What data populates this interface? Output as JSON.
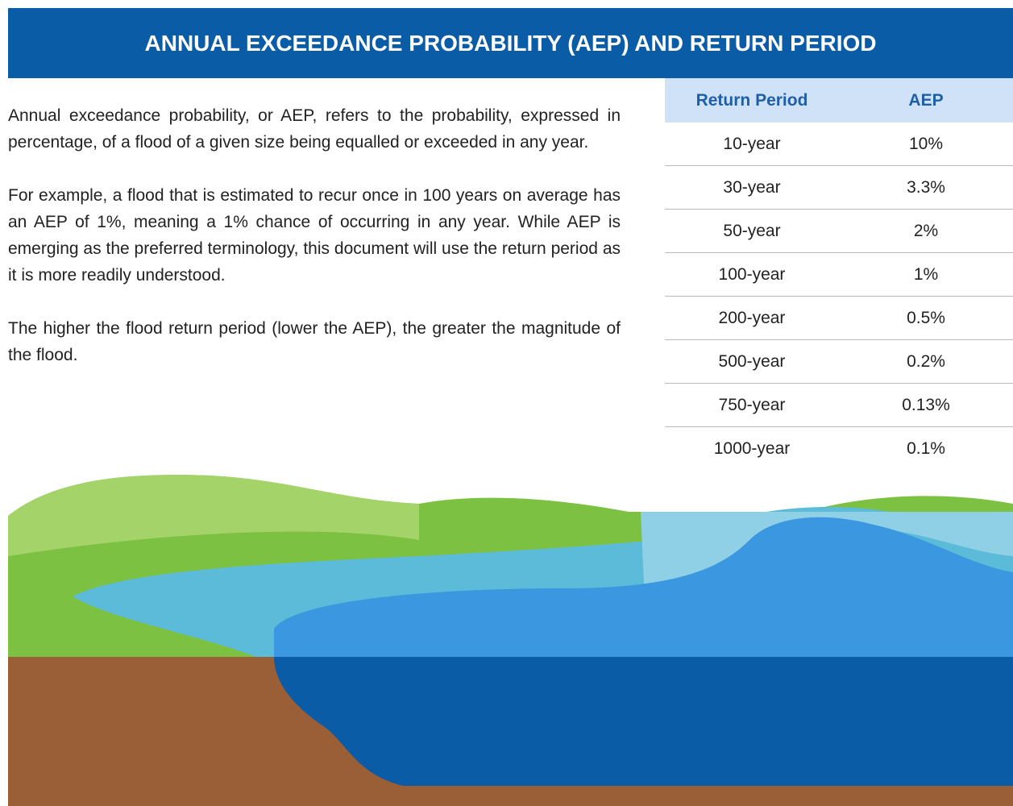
{
  "header": {
    "title": "ANNUAL EXCEEDANCE PROBABILITY (AEP) AND RETURN PERIOD"
  },
  "paragraphs": [
    "Annual exceedance probability, or AEP, refers to the probability, expressed in percentage, of a flood of a given size being equalled or exceeded in any year.",
    "For example, a flood that is estimated to recur once in 100 years on average has an AEP of 1%, meaning a 1% chance of occurring in any year. While AEP is emerging as the preferred terminology, this document will use the return period as it is more readily understood.",
    "The higher the flood return period (lower the AEP), the greater the magnitude of the flood."
  ],
  "table": {
    "headers": [
      "Return Period",
      "AEP"
    ],
    "rows": [
      [
        "10-year",
        "10%"
      ],
      [
        "30-year",
        "3.3%"
      ],
      [
        "50-year",
        "2%"
      ],
      [
        "100-year",
        "1%"
      ],
      [
        "200-year",
        "0.5%"
      ],
      [
        "500-year",
        "0.2%"
      ],
      [
        "750-year",
        "0.13%"
      ],
      [
        "1000-year",
        "0.1%"
      ]
    ]
  }
}
